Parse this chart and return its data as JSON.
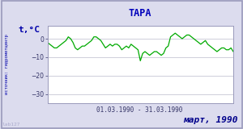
{
  "title": "ТАРА",
  "ylabel": "t,°C",
  "xlabel": "01.03.1990 - 31.03.1990",
  "bottom_label": "март, 1990",
  "watermark": "lab127",
  "source_label": "источник: гидрометцентр",
  "ylim": [
    -35,
    7
  ],
  "yticks": [
    0,
    -10,
    -20,
    -30
  ],
  "bg_color": "#dcdcee",
  "plot_bg_color": "#ffffff",
  "border_color": "#9999bb",
  "line_color": "#00aa00",
  "title_color": "#0000bb",
  "label_color": "#0000aa",
  "tick_color": "#333366",
  "bottom_label_color": "#00008b",
  "watermark_color": "#aaaacc",
  "grid_color": "#bbbbcc",
  "temps": [
    -2,
    -3,
    -4,
    -5,
    -5,
    -4,
    -3,
    -2,
    -1,
    1,
    0,
    -2,
    -5,
    -6,
    -5,
    -4,
    -4,
    -3,
    -2,
    -1,
    1,
    1,
    0,
    -1,
    -3,
    -5,
    -4,
    -3,
    -4,
    -3,
    -3,
    -4,
    -6,
    -5,
    -4,
    -5,
    -3,
    -4,
    -5,
    -6,
    -12,
    -8,
    -7,
    -8,
    -9,
    -8,
    -7,
    -7,
    -8,
    -9,
    -8,
    -5,
    -4,
    1,
    2,
    3,
    2,
    1,
    0,
    1,
    2,
    2,
    1,
    0,
    -1,
    -2,
    -3,
    -2,
    -1,
    -3,
    -4,
    -5,
    -6,
    -7,
    -6,
    -5,
    -5,
    -6,
    -6,
    -5,
    -7
  ]
}
